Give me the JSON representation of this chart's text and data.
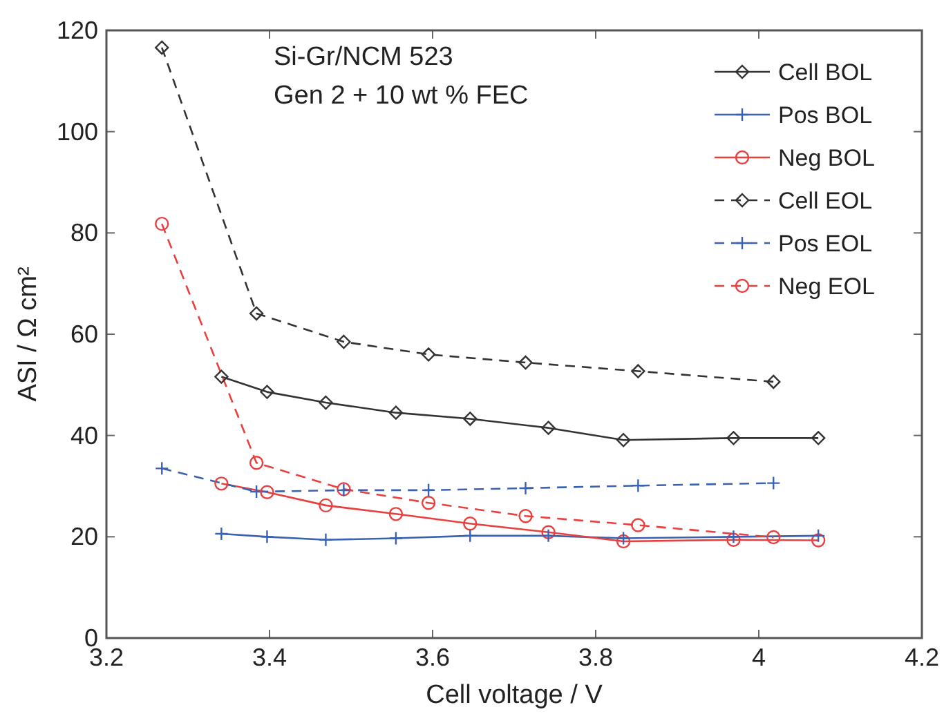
{
  "chart_data": {
    "type": "line",
    "xlabel": "Cell voltage / V",
    "ylabel": "ASI / Ω cm²",
    "annotations": [
      "Si-Gr/NCM 523",
      "Gen 2 + 10 wt % FEC"
    ],
    "xlim": [
      3.2,
      4.2
    ],
    "xticks": [
      3.2,
      3.4,
      3.6,
      3.8,
      {
        "value": 4,
        "label": "4"
      },
      4.2
    ],
    "ylim": [
      0,
      120
    ],
    "yticks": [
      0,
      20,
      40,
      60,
      80,
      100,
      120
    ],
    "grid": false,
    "legend": "top right",
    "series": [
      {
        "name": "Cell BOL",
        "color": "#333333",
        "marker": "diamond",
        "line_style": "solid",
        "x": [
          3.341,
          3.397,
          3.469,
          3.555,
          3.646,
          3.742,
          3.834,
          3.969,
          4.073
        ],
        "values": [
          51.6,
          48.6,
          46.5,
          44.5,
          43.3,
          41.5,
          39.1,
          39.5,
          39.5
        ]
      },
      {
        "name": "Pos BOL",
        "color": "#3a62b0",
        "marker": "cross",
        "line_style": "solid",
        "x": [
          3.341,
          3.397,
          3.469,
          3.555,
          3.646,
          3.742,
          3.834,
          3.969,
          4.073
        ],
        "values": [
          20.6,
          20.0,
          19.4,
          19.7,
          20.2,
          20.2,
          19.7,
          20.0,
          20.2
        ]
      },
      {
        "name": "Neg BOL",
        "color": "#e8403f",
        "marker": "circle",
        "line_style": "solid",
        "x": [
          3.341,
          3.397,
          3.469,
          3.555,
          3.646,
          3.742,
          3.834,
          3.969,
          4.073
        ],
        "values": [
          30.5,
          28.8,
          26.2,
          24.5,
          22.6,
          20.9,
          19.1,
          19.4,
          19.3
        ]
      },
      {
        "name": "Cell EOL",
        "color": "#333333",
        "marker": "diamond",
        "line_style": "dashed",
        "x": [
          3.268,
          3.384,
          3.491,
          3.595,
          3.714,
          3.852,
          4.018
        ],
        "values": [
          116.6,
          64.1,
          58.5,
          56.0,
          54.4,
          52.7,
          50.6
        ]
      },
      {
        "name": "Pos EOL",
        "color": "#3a62b0",
        "marker": "cross",
        "line_style": "dashed",
        "x": [
          3.268,
          3.384,
          3.491,
          3.595,
          3.714,
          3.852,
          4.018
        ],
        "values": [
          33.5,
          28.9,
          29.2,
          29.2,
          29.6,
          30.1,
          30.6
        ]
      },
      {
        "name": "Neg EOL",
        "color": "#e8403f",
        "marker": "circle",
        "line_style": "dashed",
        "x": [
          3.268,
          3.384,
          3.491,
          3.595,
          3.714,
          3.852,
          4.018
        ],
        "values": [
          81.8,
          34.6,
          29.4,
          26.7,
          24.1,
          22.3,
          19.9
        ]
      }
    ]
  }
}
